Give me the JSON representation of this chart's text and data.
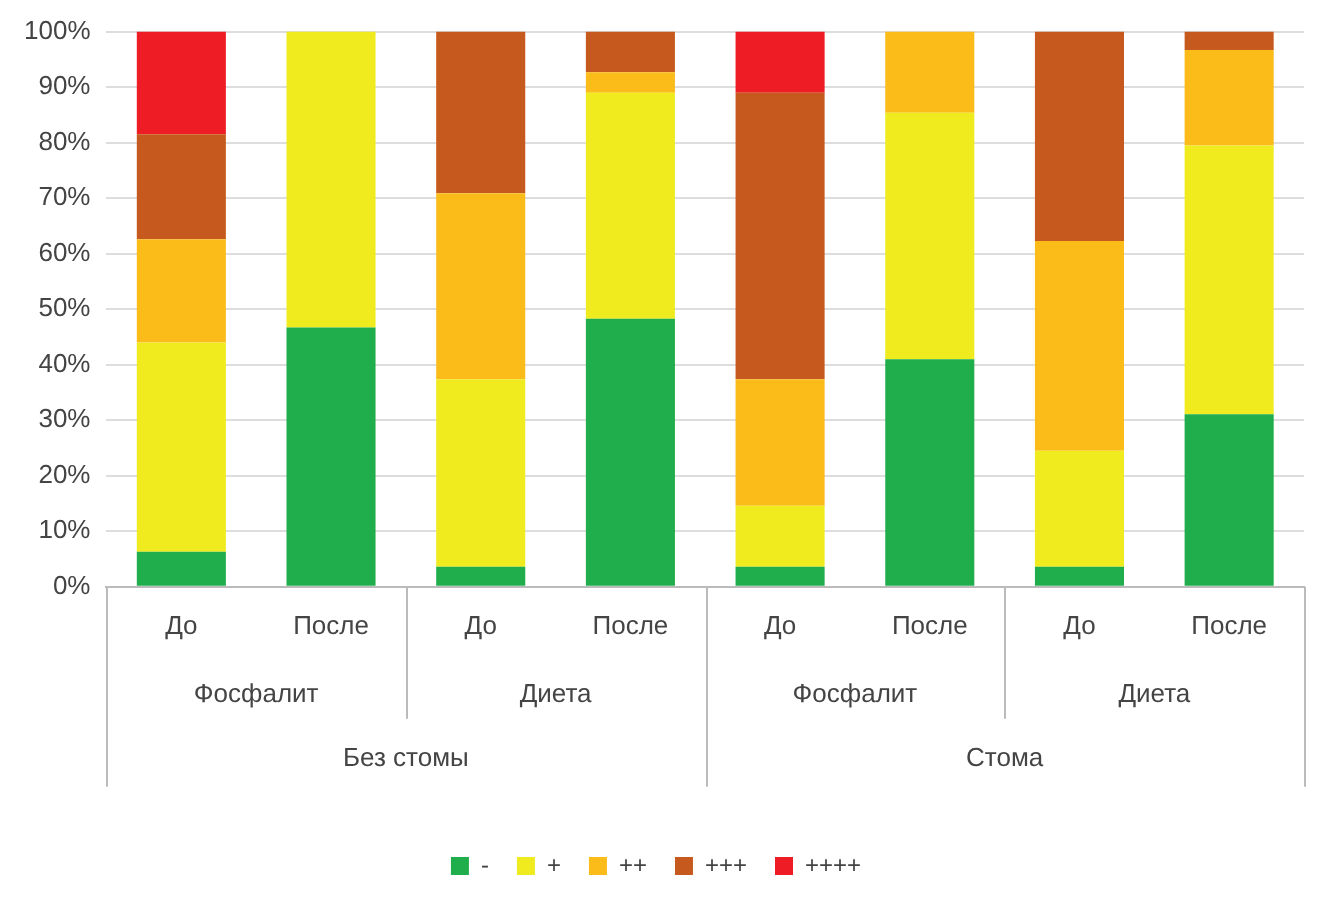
{
  "chart_data": {
    "type": "bar",
    "stacked": true,
    "categories": [
      "До",
      "После",
      "До",
      "После",
      "До",
      "После",
      "До",
      "После"
    ],
    "series": [
      {
        "name": "-",
        "color": "#1fae4b",
        "values": [
          6.3,
          46.7,
          3.6,
          48.3,
          3.6,
          41,
          3.6,
          31.1
        ]
      },
      {
        "name": "+",
        "color": "#f0eb1e",
        "values": [
          37.7,
          53.3,
          33.8,
          40.7,
          11,
          44.4,
          20.9,
          48.4
        ]
      },
      {
        "name": "++",
        "color": "#fbbc1a",
        "values": [
          18.6,
          null,
          33.5,
          3.7,
          22.8,
          14.6,
          37.8,
          17.2
        ]
      },
      {
        "name": "+++",
        "color": "#c65a1e",
        "values": [
          18.9,
          null,
          29.1,
          7.3,
          51.6,
          null,
          37.7,
          3.3
        ]
      },
      {
        "name": "++++",
        "color": "#ee1c24",
        "values": [
          18.5,
          null,
          null,
          null,
          11,
          null,
          null,
          null
        ]
      }
    ],
    "ylim": [
      0,
      100
    ],
    "yticks": [
      {
        "value": 0,
        "label": "0%"
      },
      {
        "value": 10,
        "label": "10%"
      },
      {
        "value": 20,
        "label": "20%"
      },
      {
        "value": 30,
        "label": "30%"
      },
      {
        "value": 40,
        "label": "40%"
      },
      {
        "value": 50,
        "label": "50%"
      },
      {
        "value": 60,
        "label": "60%"
      },
      {
        "value": 70,
        "label": "70%"
      },
      {
        "value": 80,
        "label": "80%"
      },
      {
        "value": 90,
        "label": "90%"
      },
      {
        "value": 100,
        "label": "100%"
      }
    ],
    "annotations": [
      "Фосфалит",
      "Диета",
      "Фосфалит",
      "Диета",
      "Без стомы",
      "Стома"
    ],
    "grid": "y",
    "legend": "bottom"
  }
}
